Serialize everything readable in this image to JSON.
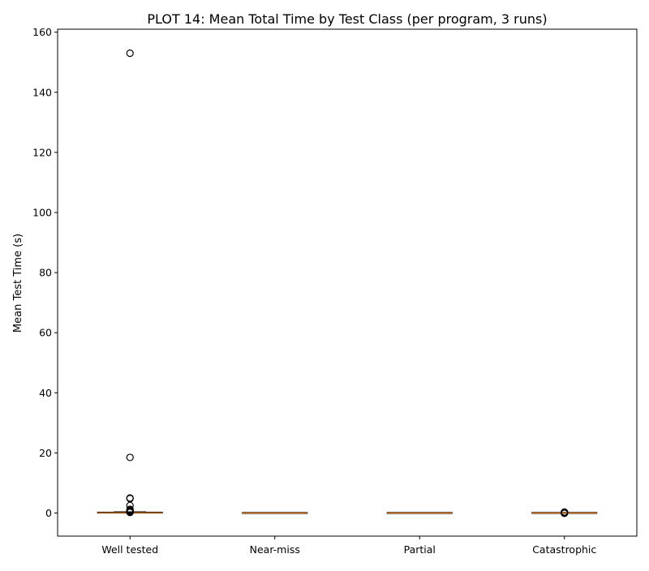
{
  "chart_data": {
    "type": "box",
    "title": "PLOT 14: Mean Total Time by Test Class (per program, 3 runs)",
    "xlabel": "",
    "ylabel": "Mean Test Time (s)",
    "ylim": [
      -7.7,
      161
    ],
    "yticks": [
      0,
      20,
      40,
      60,
      80,
      100,
      120,
      140,
      160
    ],
    "grid": false,
    "categories": [
      "Well tested",
      "Near-miss",
      "Partial",
      "Catastrophic"
    ],
    "boxes": [
      {
        "category": "Well tested",
        "whisker_low": 0.0,
        "q1": 0.05,
        "median": 0.1,
        "q3": 0.2,
        "whisker_high": 0.4,
        "outliers": [
          153.0,
          18.5,
          5.0,
          4.8,
          2.5,
          1.2,
          0.9,
          0.6,
          0.4,
          0.2
        ]
      },
      {
        "category": "Near-miss",
        "whisker_low": 0.0,
        "q1": 0.0,
        "median": 0.0,
        "q3": 0.02,
        "whisker_high": 0.05,
        "outliers": []
      },
      {
        "category": "Partial",
        "whisker_low": 0.0,
        "q1": 0.0,
        "median": 0.0,
        "q3": 0.02,
        "whisker_high": 0.05,
        "outliers": []
      },
      {
        "category": "Catastrophic",
        "whisker_low": 0.0,
        "q1": 0.0,
        "median": 0.0,
        "q3": 0.03,
        "whisker_high": 0.06,
        "outliers": [
          0.3,
          0.2,
          0.1,
          -0.1
        ]
      }
    ],
    "colors": {
      "box_edge": "#000000",
      "median": "#ff7f0e",
      "outlier": "#000000"
    }
  }
}
